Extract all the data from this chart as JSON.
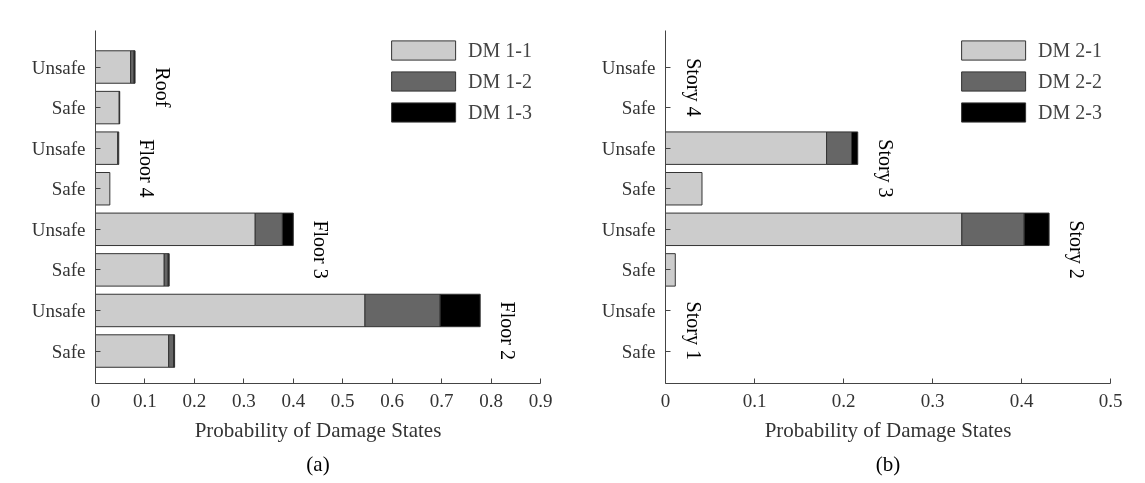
{
  "chart_data": [
    {
      "type": "bar",
      "orientation": "horizontal",
      "stacked": true,
      "xlabel": "Probability of Damage States",
      "categories": [
        "Unsafe",
        "Safe",
        "Unsafe",
        "Safe",
        "Unsafe",
        "Safe",
        "Unsafe",
        "Safe"
      ],
      "series": [
        {
          "name": "DM 1-1",
          "color": "#cccccc",
          "values": [
            0.071,
            0.048,
            0.045,
            0.029,
            0.323,
            0.139,
            0.545,
            0.148
          ]
        },
        {
          "name": "DM 1-2",
          "color": "#666666",
          "values": [
            0.007,
            null,
            0.002,
            0,
            0.055,
            0.008,
            0.152,
            0.01
          ]
        },
        {
          "name": "DM 1-3",
          "color": "#000000",
          "values": [
            0.002,
            0.001,
            0,
            0,
            0.022,
            0.002,
            0.081,
            0.002
          ]
        }
      ],
      "xlim": [
        0,
        0.9
      ],
      "xticks": [
        0,
        0.1,
        0.2,
        0.3,
        0.4,
        0.5,
        0.6,
        0.7,
        0.8,
        0.9
      ],
      "grid": false,
      "legend": "top right",
      "title": "(a)",
      "annotations": [
        "Roof",
        "Floor 4",
        "Floor 3",
        "Floor 2"
      ]
    },
    {
      "type": "bar",
      "orientation": "horizontal",
      "stacked": true,
      "xlabel": "Probability of Damage States",
      "categories": [
        "Unsafe",
        "Safe",
        "Unsafe",
        "Safe",
        "Unsafe",
        "Safe",
        "Unsafe",
        "Safe"
      ],
      "series": [
        {
          "name": "DM 2-1",
          "color": "#cccccc",
          "values": [
            0,
            0,
            0.181,
            0.041,
            0.333,
            0.011,
            0,
            0
          ]
        },
        {
          "name": "DM 2-2",
          "color": "#666666",
          "values": [
            0,
            0,
            0.028,
            0,
            0.07,
            0,
            0,
            0
          ]
        },
        {
          "name": "DM 2-3",
          "color": "#000000",
          "values": [
            0,
            0,
            0.007,
            0,
            0.028,
            0,
            0,
            0
          ]
        }
      ],
      "xlim": [
        0,
        0.5
      ],
      "xticks": [
        0,
        0.1,
        0.2,
        0.3,
        0.4,
        0.5
      ],
      "grid": false,
      "legend": "top right",
      "title": "(b)",
      "annotations": [
        "Story 4",
        "Story 3",
        "Story 2",
        "Story 1"
      ]
    }
  ]
}
